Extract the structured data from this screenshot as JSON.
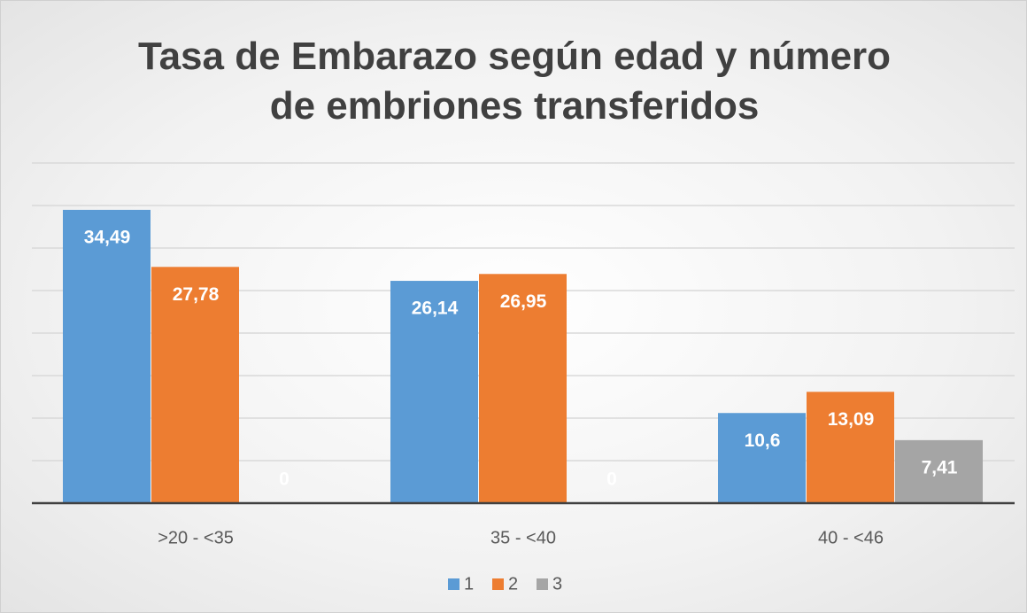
{
  "chart_data": {
    "type": "bar",
    "title": "Tasa de Embarazo según edad y número de embriones transferidos",
    "categories": [
      ">20 - <35",
      "35 - <40",
      "40 - <46"
    ],
    "series": [
      {
        "name": "1",
        "color": "#5b9bd5",
        "values": [
          34.49,
          26.14,
          10.6
        ],
        "value_labels": [
          "34,49",
          "26,14",
          "10,6"
        ]
      },
      {
        "name": "2",
        "color": "#ed7d31",
        "values": [
          27.78,
          26.95,
          13.09
        ],
        "value_labels": [
          "27,78",
          "26,95",
          "13,09"
        ]
      },
      {
        "name": "3",
        "color": "#a5a5a5",
        "values": [
          0,
          0,
          7.41
        ],
        "value_labels": [
          "0",
          "0",
          "7,41"
        ]
      }
    ],
    "ylim": [
      0,
      40
    ],
    "yticks": [
      0,
      5,
      10,
      15,
      20,
      25,
      30,
      35,
      40
    ],
    "grid": true,
    "legend": "bottom"
  }
}
